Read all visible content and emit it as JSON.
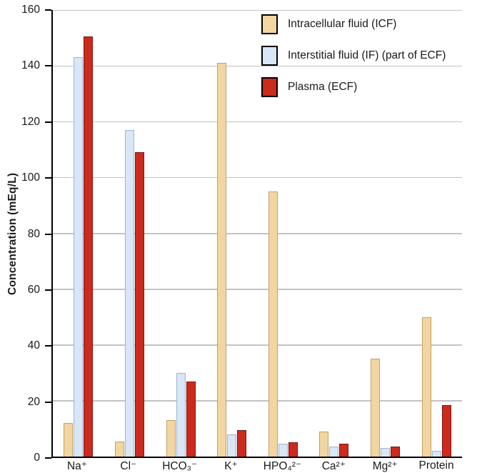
{
  "chart_data": {
    "type": "bar",
    "title": "",
    "xlabel": "",
    "ylabel": "Concentration (mEq/L)",
    "ylim": [
      0,
      160
    ],
    "yticks": [
      0,
      20,
      40,
      60,
      80,
      100,
      120,
      140,
      160
    ],
    "grid": true,
    "grid_color": "#c3c3c3",
    "legend_position": "top-right",
    "categories": [
      "Na⁺",
      "Cl⁻",
      "HCO₃⁻",
      "K⁺",
      "HPO₄²⁻",
      "Ca²⁺",
      "Mg²⁺",
      "Protein"
    ],
    "series": [
      {
        "name": "Intracellular fluid (ICF)",
        "color": "#f2d6a2",
        "border": "#c3a065",
        "values": [
          12,
          5.5,
          13,
          141,
          95,
          9,
          35,
          50
        ]
      },
      {
        "name": "Interstitial fluid (IF) (part of ECF)",
        "color": "#d8e6f6",
        "border": "#9db6d0",
        "values": [
          143,
          117,
          30,
          8,
          4.5,
          3.5,
          3,
          2
        ]
      },
      {
        "name": "Plasma (ECF)",
        "color": "#cc2a1d",
        "border": "#7e150d",
        "values": [
          150.5,
          109,
          27,
          9.5,
          5,
          4.5,
          3.5,
          18.5
        ]
      }
    ]
  }
}
